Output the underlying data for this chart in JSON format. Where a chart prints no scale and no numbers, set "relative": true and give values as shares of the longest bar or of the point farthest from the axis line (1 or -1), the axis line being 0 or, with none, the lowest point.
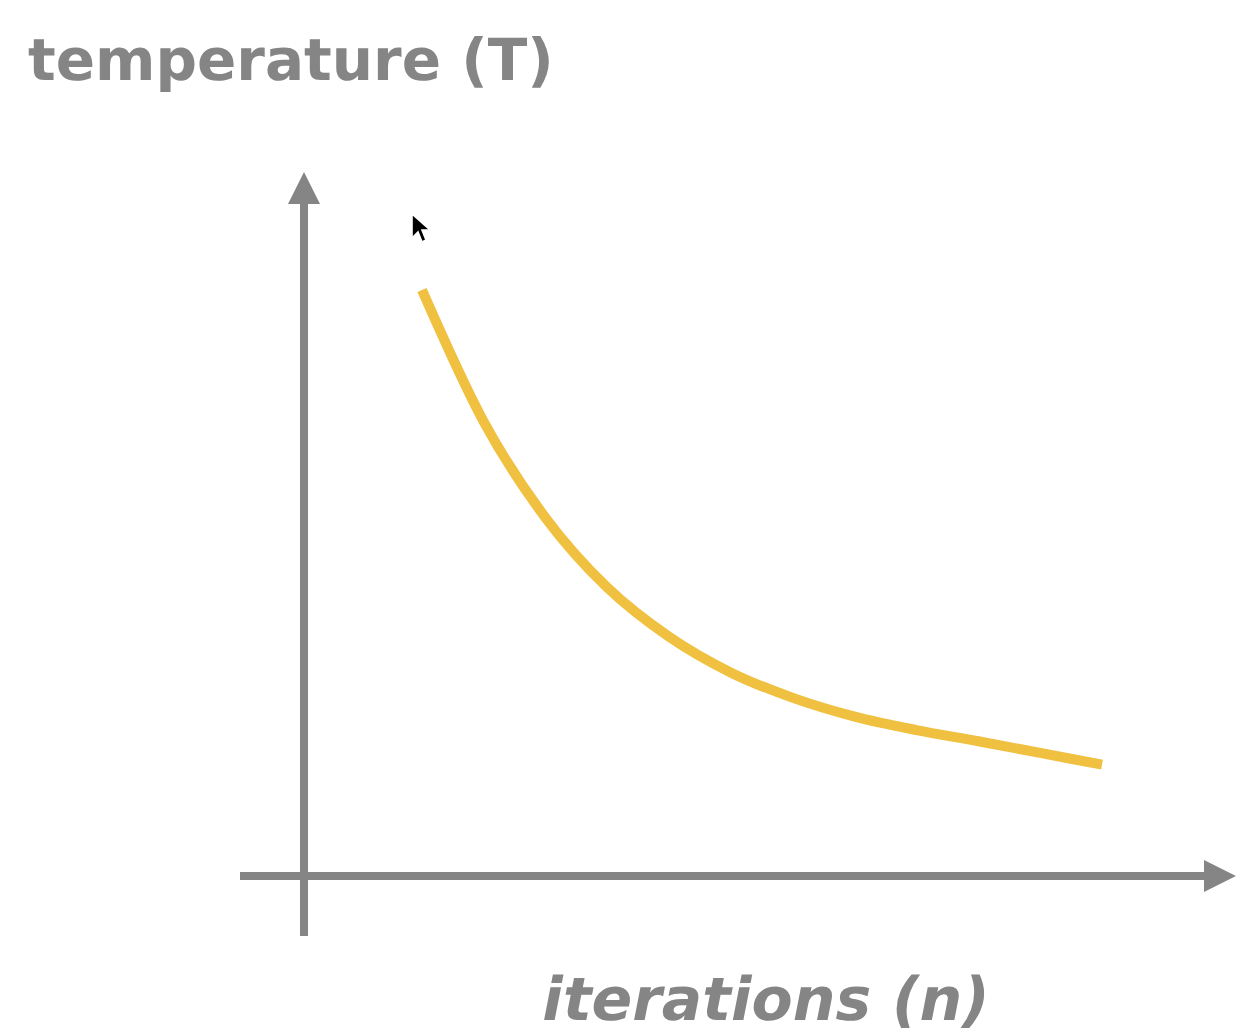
{
  "chart_data": {
    "type": "line",
    "title": "temperature (T)",
    "xlabel": "iterations (n)",
    "relative": true,
    "categories": [
      null,
      null,
      null,
      null,
      null,
      null,
      null,
      null,
      null,
      null,
      null,
      null
    ],
    "series": [
      {
        "color": "#f0c040",
        "values": [
          1.0,
          0.775,
          0.611,
          0.492,
          0.408,
          0.347,
          0.304,
          0.272,
          0.249,
          0.23,
          0.21,
          0.19
        ]
      }
    ]
  }
}
